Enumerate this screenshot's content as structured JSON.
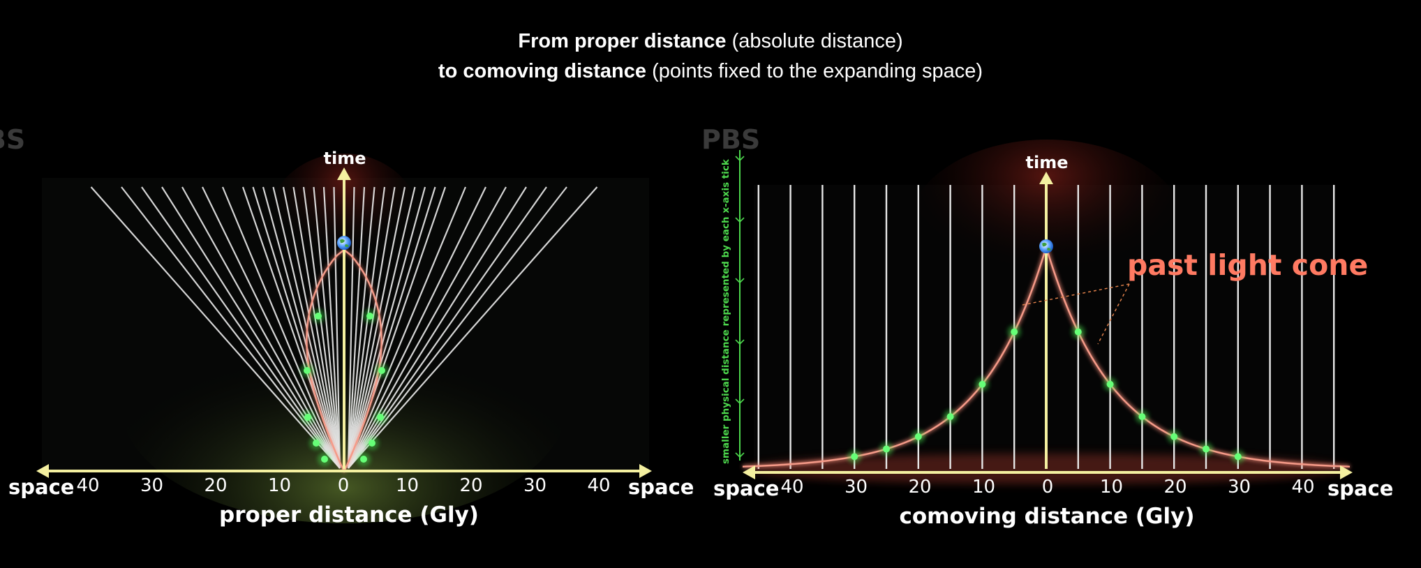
{
  "header": {
    "line1_bold": "From proper distance",
    "line1_rest": "(absolute distance)",
    "line2_bold": "to comoving distance",
    "line2_rest": "(points fixed to the expanding space)"
  },
  "watermarks": {
    "left": "PBS",
    "right": "PBS"
  },
  "colors": {
    "axis": "#f4f0a0",
    "worldline": "#e8e8e8",
    "cone": "#f08a78",
    "dot": "#44ff55",
    "highlight": "#ff7a62",
    "side_arrow": "#4dd84d"
  },
  "left_panel": {
    "time_label": "time",
    "space_left_label": "space",
    "space_right_label": "space",
    "x_ticks": [
      "40",
      "30",
      "20",
      "10",
      "0",
      "10",
      "20",
      "30",
      "40"
    ],
    "xlabel": "proper distance (Gly)",
    "observer_icon": "earth-icon"
  },
  "right_panel": {
    "time_label": "time",
    "space_left_label": "space",
    "space_right_label": "space",
    "x_ticks": [
      "40",
      "30",
      "20",
      "10",
      "0",
      "10",
      "20",
      "30",
      "40"
    ],
    "xlabel": "comoving distance (Gly)",
    "annotation": "past light cone",
    "side_note": "smaller physical distance represented by each x-axis tick",
    "observer_icon": "earth-icon"
  }
}
